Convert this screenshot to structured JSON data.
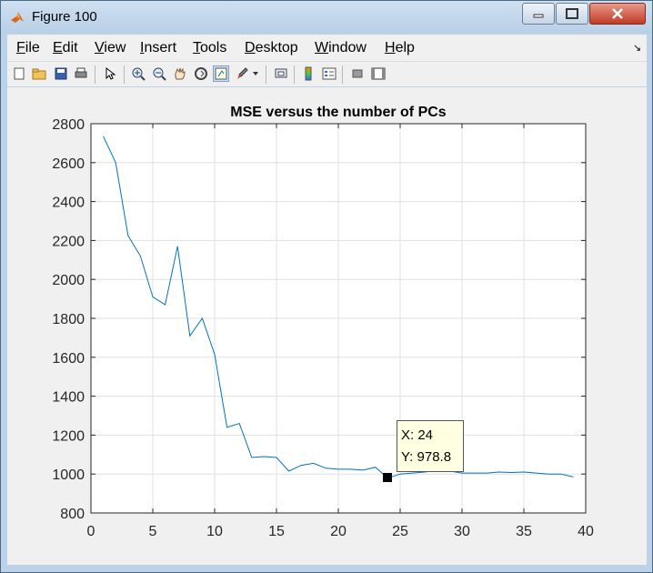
{
  "window": {
    "title": "Figure 100"
  },
  "menu": [
    {
      "label_u": "F",
      "label_rest": "ile"
    },
    {
      "label_u": "E",
      "label_rest": "dit"
    },
    {
      "label_u": "V",
      "label_rest": "iew"
    },
    {
      "label_u": "I",
      "label_rest": "nsert"
    },
    {
      "label_u": "T",
      "label_rest": "ools"
    },
    {
      "label_u": "D",
      "label_rest": "esktop"
    },
    {
      "label_u": "W",
      "label_rest": "indow"
    },
    {
      "label_u": "H",
      "label_rest": "elp"
    }
  ],
  "toolbar_icons": [
    "new-figure-icon",
    "open-file-icon",
    "save-icon",
    "print-icon",
    "pointer-icon",
    "zoom-in-icon",
    "zoom-out-icon",
    "pan-icon",
    "rotate-3d-icon",
    "data-cursor-icon",
    "brush-icon",
    "link-plot-icon",
    "colorbar-icon",
    "legend-icon",
    "hide-plot-tools-icon",
    "show-plot-tools-icon"
  ],
  "datatip": {
    "x_text": "X: 24",
    "y_text": "Y: 978.8",
    "x": 24,
    "y": 978.8
  },
  "chart_data": {
    "type": "line",
    "title": "MSE versus the number of PCs",
    "xlabel": "",
    "ylabel": "",
    "xlim": [
      0,
      40
    ],
    "ylim": [
      800,
      2800
    ],
    "xticks": [
      0,
      5,
      10,
      15,
      20,
      25,
      30,
      35,
      40
    ],
    "yticks": [
      800,
      1000,
      1200,
      1400,
      1600,
      1800,
      2000,
      2200,
      2400,
      2600,
      2800
    ],
    "grid": true,
    "line_color": "#0072bd",
    "series": [
      {
        "x": [
          1,
          2,
          3,
          4,
          5,
          6,
          7,
          8,
          9,
          10,
          11,
          12,
          13,
          14,
          15,
          16,
          17,
          18,
          19,
          20,
          21,
          22,
          23,
          24,
          25,
          26,
          27,
          28,
          29,
          30,
          31,
          32,
          33,
          34,
          35,
          36,
          37,
          38,
          39
        ],
        "values": [
          2735,
          2600,
          2225,
          2120,
          1910,
          1870,
          2170,
          1710,
          1800,
          1615,
          1240,
          1260,
          1085,
          1090,
          1085,
          1015,
          1045,
          1055,
          1030,
          1025,
          1025,
          1020,
          1035,
          978.8,
          1000,
          1005,
          1010,
          1020,
          1015,
          1005,
          1005,
          1005,
          1010,
          1008,
          1010,
          1005,
          1000,
          1000,
          985
        ]
      }
    ]
  }
}
